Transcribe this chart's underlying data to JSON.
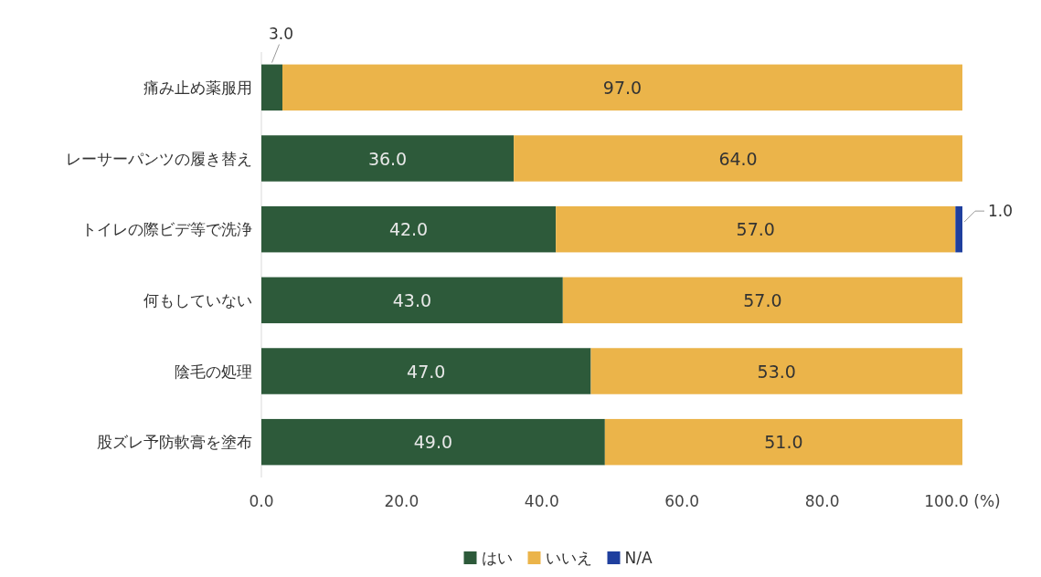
{
  "chart_data": {
    "type": "bar",
    "orientation": "horizontal",
    "stacked": true,
    "categories": [
      "痛み止め薬服用",
      "レーサーパンツの履き替え",
      "トイレの際ビデ等で洗浄",
      "何もしていない",
      "陰毛の処理",
      "股ズレ予防軟膏を塗布"
    ],
    "series": [
      {
        "name": "はい",
        "color": "#2d5a3a",
        "values": [
          3,
          36,
          42,
          43,
          47,
          49
        ],
        "value_labels": [
          "3.0",
          "36.0",
          "42.0",
          "43.0",
          "47.0",
          "49.0"
        ]
      },
      {
        "name": "いいえ",
        "color": "#ebb44a",
        "values": [
          97,
          64,
          57,
          57,
          53,
          51
        ],
        "value_labels": [
          "97.0",
          "64.0",
          "57.0",
          "57.0",
          "53.0",
          "51.0"
        ]
      },
      {
        "name": "N/A",
        "color": "#1f3f9e",
        "values": [
          null,
          null,
          1,
          null,
          null,
          null
        ],
        "value_labels": [
          null,
          null,
          "1.0",
          null,
          null,
          null
        ]
      }
    ],
    "xlim": [
      0,
      100
    ],
    "xticks": [
      {
        "value": 0,
        "label": "0.0"
      },
      {
        "value": 20,
        "label": "20.0"
      },
      {
        "value": 40,
        "label": "40.0"
      },
      {
        "value": 60,
        "label": "60.0"
      },
      {
        "value": 80,
        "label": "80.0"
      },
      {
        "value": 100,
        "label": "100.0 (%)"
      }
    ],
    "grid": false,
    "legend": "bottom"
  }
}
